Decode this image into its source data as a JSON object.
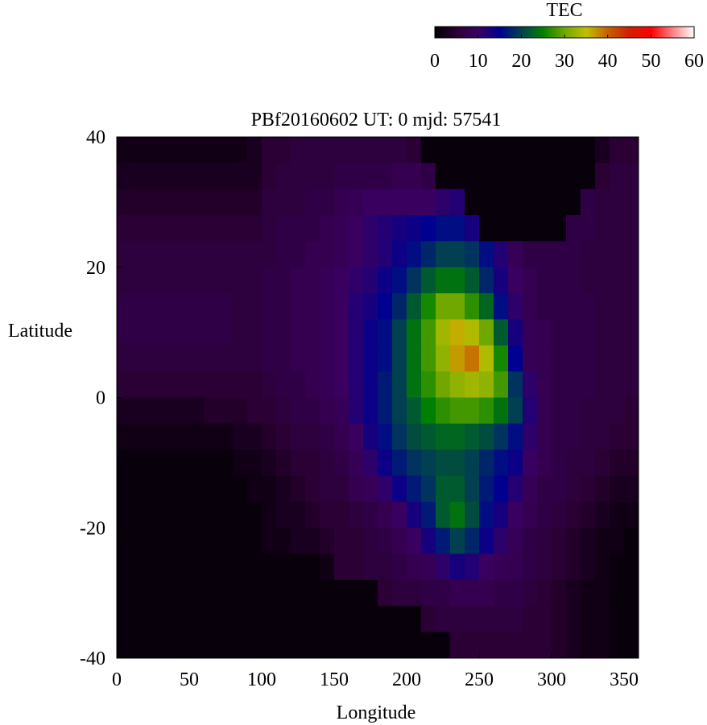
{
  "chart_data": {
    "type": "heatmap",
    "title": "PBf20160602  UT: 0  mjd: 57541",
    "xlabel": "Longitude",
    "ylabel": "Latitude",
    "xlim": [
      0,
      360
    ],
    "ylim": [
      -40,
      40
    ],
    "xticks": [
      "0",
      "50",
      "100",
      "150",
      "200",
      "250",
      "300",
      "350"
    ],
    "yticks": [
      "40",
      "20",
      "0",
      "-20",
      "-40"
    ],
    "grid": false,
    "colorbar": {
      "label": "TEC",
      "range": [
        0,
        60
      ],
      "ticks": [
        "0",
        "10",
        "20",
        "30",
        "40",
        "50",
        "60"
      ],
      "placement": "top-right",
      "colormap": [
        {
          "value": 0,
          "color": "#000000"
        },
        {
          "value": 5,
          "color": "#2a0035"
        },
        {
          "value": 10,
          "color": "#3a0060"
        },
        {
          "value": 15,
          "color": "#000090"
        },
        {
          "value": 20,
          "color": "#004050"
        },
        {
          "value": 25,
          "color": "#008000"
        },
        {
          "value": 30,
          "color": "#70a800"
        },
        {
          "value": 35,
          "color": "#c0c000"
        },
        {
          "value": 40,
          "color": "#c86000"
        },
        {
          "value": 45,
          "color": "#d02000"
        },
        {
          "value": 50,
          "color": "#ff0000"
        },
        {
          "value": 55,
          "color": "#ff8080"
        },
        {
          "value": 60,
          "color": "#ffffff"
        }
      ]
    },
    "lon": [
      0,
      10,
      20,
      30,
      40,
      50,
      60,
      70,
      80,
      90,
      100,
      110,
      120,
      130,
      140,
      150,
      160,
      170,
      180,
      190,
      200,
      210,
      220,
      230,
      240,
      250,
      260,
      270,
      280,
      290,
      300,
      310,
      320,
      330,
      340,
      350
    ],
    "lat": [
      38,
      34,
      30,
      26,
      22,
      18,
      14,
      10,
      6,
      2,
      -2,
      -6,
      -10,
      -14,
      -18,
      -22,
      -26,
      -30,
      -34,
      -38
    ],
    "values": [
      [
        2,
        2,
        2,
        2,
        2,
        2,
        2,
        2,
        2,
        3,
        5,
        5,
        6,
        6,
        6,
        6,
        6,
        6,
        6,
        6,
        5,
        1,
        1,
        1,
        1,
        1,
        1,
        1,
        1,
        1,
        1,
        1,
        1,
        3,
        5,
        5
      ],
      [
        3,
        3,
        3,
        3,
        3,
        3,
        3,
        3,
        3,
        3,
        5,
        6,
        6,
        6,
        6,
        7,
        7,
        7,
        7,
        8,
        8,
        7,
        1,
        1,
        1,
        1,
        1,
        1,
        1,
        1,
        1,
        1,
        1,
        5,
        6,
        6
      ],
      [
        4,
        4,
        4,
        4,
        4,
        4,
        4,
        4,
        4,
        4,
        6,
        6,
        6,
        7,
        7,
        8,
        9,
        10,
        10,
        10,
        10,
        10,
        11,
        12,
        1,
        1,
        1,
        1,
        1,
        1,
        1,
        1,
        7,
        6,
        6,
        6
      ],
      [
        5,
        5,
        5,
        5,
        5,
        5,
        5,
        5,
        5,
        5,
        6,
        7,
        7,
        7,
        8,
        9,
        10,
        11,
        12,
        13,
        14,
        15,
        16,
        16,
        13,
        1,
        1,
        1,
        1,
        1,
        1,
        7,
        7,
        6,
        6,
        6
      ],
      [
        6,
        6,
        6,
        6,
        6,
        6,
        6,
        6,
        6,
        6,
        6,
        7,
        7,
        8,
        8,
        9,
        10,
        11,
        12,
        14,
        16,
        18,
        20,
        20,
        19,
        16,
        12,
        9,
        7,
        7,
        7,
        7,
        6,
        6,
        6,
        6
      ],
      [
        6,
        6,
        6,
        6,
        6,
        6,
        6,
        6,
        6,
        6,
        7,
        7,
        8,
        8,
        9,
        10,
        11,
        12,
        14,
        16,
        19,
        22,
        24,
        24,
        22,
        18,
        13,
        10,
        8,
        7,
        7,
        7,
        6,
        6,
        6,
        6
      ],
      [
        7,
        7,
        7,
        7,
        7,
        7,
        7,
        7,
        6,
        6,
        7,
        7,
        8,
        8,
        9,
        10,
        12,
        13,
        15,
        18,
        22,
        26,
        30,
        30,
        27,
        23,
        16,
        11,
        8,
        7,
        7,
        7,
        7,
        6,
        6,
        6
      ],
      [
        7,
        7,
        7,
        7,
        7,
        7,
        7,
        7,
        6,
        6,
        7,
        7,
        8,
        8,
        9,
        10,
        12,
        14,
        16,
        20,
        24,
        28,
        33,
        36,
        34,
        30,
        22,
        13,
        9,
        8,
        7,
        7,
        7,
        6,
        6,
        6
      ],
      [
        6,
        6,
        6,
        6,
        6,
        6,
        6,
        6,
        6,
        6,
        7,
        7,
        8,
        8,
        9,
        10,
        12,
        14,
        16,
        20,
        24,
        28,
        32,
        37,
        39,
        34,
        26,
        15,
        9,
        8,
        7,
        7,
        7,
        6,
        6,
        6
      ],
      [
        5,
        5,
        5,
        5,
        5,
        5,
        5,
        5,
        5,
        5,
        6,
        7,
        7,
        8,
        9,
        10,
        12,
        14,
        17,
        20,
        24,
        27,
        30,
        32,
        33,
        32,
        28,
        19,
        11,
        8,
        7,
        7,
        7,
        6,
        6,
        6
      ],
      [
        3,
        3,
        3,
        3,
        3,
        3,
        4,
        4,
        4,
        5,
        5,
        6,
        7,
        7,
        8,
        9,
        12,
        14,
        17,
        20,
        22,
        25,
        27,
        28,
        28,
        27,
        24,
        20,
        12,
        8,
        7,
        7,
        6,
        6,
        6,
        5
      ],
      [
        2,
        2,
        2,
        2,
        2,
        2,
        2,
        2,
        3,
        3,
        4,
        5,
        6,
        6,
        7,
        8,
        10,
        13,
        16,
        19,
        21,
        22,
        23,
        23,
        22,
        21,
        19,
        16,
        11,
        8,
        7,
        7,
        6,
        6,
        5,
        5
      ],
      [
        1,
        1,
        1,
        1,
        1,
        1,
        1,
        1,
        2,
        2,
        3,
        4,
        5,
        5,
        6,
        7,
        9,
        11,
        14,
        17,
        19,
        20,
        21,
        21,
        20,
        18,
        16,
        14,
        10,
        8,
        7,
        6,
        6,
        5,
        4,
        4
      ],
      [
        1,
        1,
        1,
        1,
        1,
        1,
        1,
        1,
        1,
        2,
        2,
        3,
        4,
        5,
        6,
        6,
        8,
        9,
        11,
        14,
        17,
        19,
        22,
        22,
        20,
        17,
        15,
        12,
        9,
        7,
        7,
        6,
        5,
        4,
        3,
        3
      ],
      [
        1,
        1,
        1,
        1,
        1,
        1,
        1,
        1,
        1,
        1,
        2,
        3,
        3,
        4,
        5,
        5,
        6,
        7,
        8,
        10,
        13,
        17,
        22,
        24,
        21,
        16,
        13,
        10,
        8,
        7,
        6,
        5,
        4,
        3,
        2,
        2
      ],
      [
        1,
        1,
        1,
        1,
        1,
        1,
        1,
        1,
        1,
        1,
        2,
        2,
        3,
        3,
        4,
        5,
        5,
        6,
        7,
        8,
        10,
        13,
        17,
        20,
        18,
        14,
        11,
        9,
        7,
        6,
        5,
        4,
        3,
        2,
        2,
        1
      ],
      [
        1,
        1,
        1,
        1,
        1,
        1,
        1,
        1,
        1,
        1,
        1,
        1,
        1,
        1,
        2,
        5,
        5,
        6,
        6,
        7,
        8,
        9,
        11,
        13,
        12,
        10,
        9,
        8,
        7,
        6,
        5,
        4,
        3,
        2,
        1,
        1
      ],
      [
        1,
        1,
        1,
        1,
        1,
        1,
        1,
        1,
        1,
        1,
        1,
        1,
        1,
        1,
        1,
        1,
        1,
        1,
        5,
        6,
        6,
        7,
        7,
        8,
        8,
        8,
        7,
        7,
        6,
        5,
        4,
        3,
        2,
        2,
        1,
        1
      ],
      [
        1,
        1,
        1,
        1,
        1,
        1,
        1,
        1,
        1,
        1,
        1,
        1,
        1,
        1,
        1,
        1,
        1,
        1,
        1,
        1,
        1,
        5,
        6,
        6,
        6,
        6,
        6,
        6,
        5,
        5,
        4,
        3,
        2,
        2,
        1,
        1
      ],
      [
        1,
        1,
        1,
        1,
        1,
        1,
        1,
        1,
        1,
        1,
        1,
        1,
        1,
        1,
        1,
        1,
        1,
        1,
        1,
        1,
        1,
        1,
        1,
        5,
        5,
        5,
        5,
        5,
        5,
        5,
        4,
        3,
        2,
        2,
        1,
        1
      ]
    ]
  }
}
